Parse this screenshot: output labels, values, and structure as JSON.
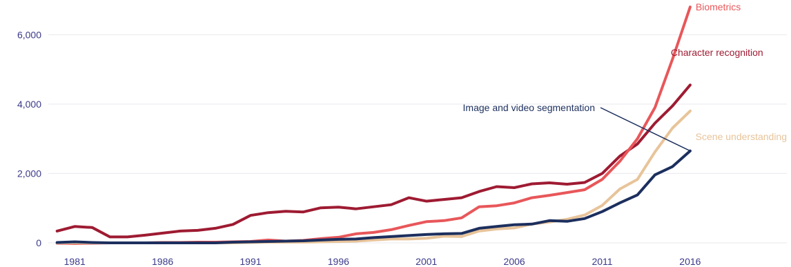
{
  "chart_data": {
    "type": "line",
    "title": "",
    "xlabel": "",
    "ylabel": "",
    "x": [
      1980,
      1981,
      1982,
      1983,
      1984,
      1985,
      1986,
      1987,
      1988,
      1989,
      1990,
      1991,
      1992,
      1993,
      1994,
      1995,
      1996,
      1997,
      1998,
      1999,
      2000,
      2001,
      2002,
      2003,
      2004,
      2005,
      2006,
      2007,
      2008,
      2009,
      2010,
      2011,
      2012,
      2013,
      2014,
      2015,
      2016
    ],
    "xticks": [
      1981,
      1986,
      1991,
      1996,
      2001,
      2006,
      2011,
      2016
    ],
    "xtick_labels": [
      "1981",
      "1986",
      "1991",
      "1996",
      "2001",
      "2006",
      "2011",
      "2016"
    ],
    "yticks": [
      0,
      2000,
      4000,
      6000
    ],
    "ytick_labels": [
      "0",
      "2,000",
      "4,000",
      "6,000"
    ],
    "xlim": [
      1979.5,
      2021.5
    ],
    "ylim": [
      -100,
      7000
    ],
    "grid": true,
    "legend": "inline-labels",
    "series": [
      {
        "name": "Character recognition",
        "color": "#9e1b32",
        "values": [
          340,
          470,
          440,
          170,
          170,
          220,
          280,
          340,
          360,
          420,
          530,
          790,
          870,
          910,
          890,
          1010,
          1030,
          980,
          1040,
          1100,
          1300,
          1200,
          1250,
          1300,
          1480,
          1620,
          1590,
          1700,
          1730,
          1690,
          1740,
          2000,
          2500,
          2850,
          3450,
          3950,
          4550
        ]
      },
      {
        "name": "Biometrics",
        "color": "#e8575a",
        "values": [
          -10,
          -20,
          -10,
          0,
          0,
          0,
          10,
          10,
          20,
          20,
          30,
          40,
          80,
          50,
          70,
          120,
          160,
          260,
          300,
          380,
          500,
          610,
          640,
          720,
          1040,
          1070,
          1150,
          1300,
          1370,
          1450,
          1530,
          1830,
          2350,
          3000,
          3900,
          5300,
          6800
        ]
      },
      {
        "name": "Scene understanding",
        "color": "#e8c49a",
        "values": [
          0,
          0,
          0,
          0,
          0,
          0,
          0,
          0,
          0,
          0,
          0,
          10,
          20,
          20,
          20,
          30,
          40,
          50,
          80,
          110,
          110,
          130,
          190,
          180,
          340,
          400,
          430,
          540,
          600,
          680,
          800,
          1080,
          1550,
          1830,
          2620,
          3310,
          3800
        ]
      },
      {
        "name": "Image and video segmentation",
        "color": "#1c2f5e",
        "values": [
          10,
          30,
          10,
          0,
          0,
          0,
          0,
          0,
          0,
          0,
          20,
          30,
          40,
          50,
          60,
          80,
          100,
          110,
          150,
          180,
          210,
          240,
          260,
          270,
          420,
          470,
          520,
          540,
          640,
          620,
          700,
          900,
          1150,
          1380,
          1960,
          2200,
          2650
        ]
      }
    ],
    "labels": [
      {
        "series": "Biometrics",
        "text": "Biometrics",
        "color": "#e8575a"
      },
      {
        "series": "Character recognition",
        "text": "Character recognition",
        "color": "#9e1b32"
      },
      {
        "series": "Image and video segmentation",
        "text": "Image and video segmentation",
        "color": "#1c2f5e"
      },
      {
        "series": "Scene understanding",
        "text": "Scene understanding",
        "color": "#e8c49a"
      }
    ]
  }
}
